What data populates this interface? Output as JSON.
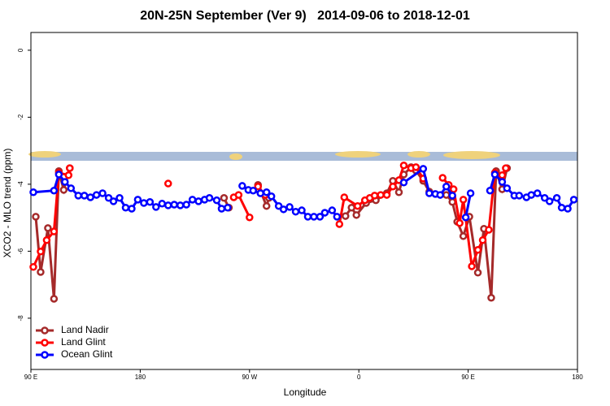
{
  "chart_data": {
    "type": "line",
    "title": "20N-25N September (Ver 9)   2014-09-06 to 2018-12-01",
    "x_label": "Longitude",
    "y_label": "XCO2 - MLO trend (ppm)",
    "xlim": [
      90,
      540
    ],
    "xticks": [
      {
        "value": 90,
        "label": "90 E"
      },
      {
        "value": 180,
        "label": "180"
      },
      {
        "value": 270,
        "label": "90 W"
      },
      {
        "value": 360,
        "label": "0"
      },
      {
        "value": 450,
        "label": "90 E"
      },
      {
        "value": 540,
        "label": "180"
      }
    ],
    "ylim": [
      -9.53,
      0.53
    ],
    "yticks": [
      0,
      -2,
      -4,
      -6,
      -8
    ],
    "legend": "bottom-left",
    "series": [
      {
        "name": "Land Nadir",
        "color": "#a52a2a",
        "x": [
          94,
          98,
          104,
          109,
          113,
          117,
          122,
          null,
          249,
          253,
          null,
          277,
          284,
          286,
          null,
          349,
          354,
          358,
          366,
          374,
          383,
          388,
          393,
          397,
          403,
          407,
          413,
          418,
          null,
          432,
          437,
          441,
          446,
          451,
          458,
          463,
          469,
          473,
          478,
          482
        ],
        "values": [
          -4.97,
          -6.62,
          -5.31,
          -7.42,
          -3.61,
          -4.17,
          -3.52,
          null,
          -4.41,
          -4.7,
          null,
          -4.02,
          -4.65,
          -4.41,
          null,
          -4.95,
          -4.7,
          -4.92,
          -4.56,
          -4.48,
          -4.27,
          -3.9,
          -4.24,
          -3.71,
          -3.49,
          -3.59,
          -3.9,
          -4.22,
          null,
          -4.32,
          -4.53,
          -5.12,
          -5.55,
          -4.97,
          -6.64,
          -5.33,
          -7.39,
          -3.61,
          -4.15,
          -3.52
        ]
      },
      {
        "name": "Land Glint",
        "color": "#ff0000",
        "x": [
          92,
          98,
          103,
          109,
          113,
          121,
          122,
          null,
          203,
          null,
          257,
          261,
          270,
          null,
          277,
          283,
          null,
          344,
          348,
          359,
          365,
          369,
          373,
          378,
          383,
          388,
          393,
          397,
          403,
          407,
          413,
          null,
          429,
          434,
          438,
          443,
          446,
          453,
          458,
          462,
          467,
          472,
          478,
          481
        ],
        "values": [
          -6.47,
          -6.01,
          -5.67,
          -5.41,
          -3.66,
          -3.73,
          -3.52,
          null,
          -3.98,
          null,
          -4.39,
          -4.32,
          -4.99,
          null,
          -4.07,
          -4.32,
          null,
          -5.19,
          -4.39,
          -4.65,
          -4.48,
          -4.41,
          -4.34,
          -4.32,
          -4.32,
          -4.07,
          -3.88,
          -3.44,
          -3.52,
          -3.49,
          -3.83,
          null,
          -3.81,
          -4.02,
          -4.15,
          -5.16,
          -4.46,
          -6.45,
          -5.96,
          -5.67,
          -5.36,
          -3.66,
          -3.73,
          -3.52
        ]
      },
      {
        "name": "Ocean Glint",
        "color": "#0000ff",
        "x": [
          92,
          109,
          113,
          118,
          123,
          129,
          134,
          139,
          144,
          149,
          154,
          158,
          163,
          168,
          173,
          178,
          183,
          188,
          193,
          198,
          203,
          208,
          213,
          218,
          223,
          228,
          233,
          237,
          243,
          247,
          252,
          null,
          264,
          269,
          273,
          279,
          284,
          288,
          294,
          298,
          303,
          308,
          313,
          318,
          323,
          328,
          332,
          338,
          342,
          null,
          397,
          413,
          418,
          423,
          427,
          432,
          437,
          null,
          448,
          452,
          null,
          468,
          472,
          478,
          482,
          488,
          492,
          498,
          502,
          507,
          513,
          517,
          523,
          527,
          532,
          537
        ],
        "values": [
          -4.24,
          -4.19,
          -3.71,
          -3.93,
          -4.12,
          -4.34,
          -4.34,
          -4.39,
          -4.32,
          -4.27,
          -4.41,
          -4.51,
          -4.41,
          -4.7,
          -4.73,
          -4.46,
          -4.56,
          -4.53,
          -4.68,
          -4.58,
          -4.63,
          -4.61,
          -4.63,
          -4.61,
          -4.46,
          -4.51,
          -4.46,
          -4.41,
          -4.48,
          -4.73,
          -4.7,
          null,
          -4.05,
          -4.17,
          -4.19,
          -4.27,
          -4.24,
          -4.36,
          -4.65,
          -4.75,
          -4.68,
          -4.82,
          -4.78,
          -4.97,
          -4.97,
          -4.97,
          -4.85,
          -4.78,
          -4.97,
          null,
          -3.95,
          -3.54,
          -4.27,
          -4.29,
          -4.32,
          -4.07,
          -4.34,
          null,
          -4.99,
          -4.27,
          null,
          -4.19,
          -3.71,
          -3.93,
          -4.12,
          -4.34,
          -4.34,
          -4.39,
          -4.32,
          -4.27,
          -4.41,
          -4.51,
          -4.41,
          -4.7,
          -4.73,
          -4.46
        ]
      }
    ]
  }
}
